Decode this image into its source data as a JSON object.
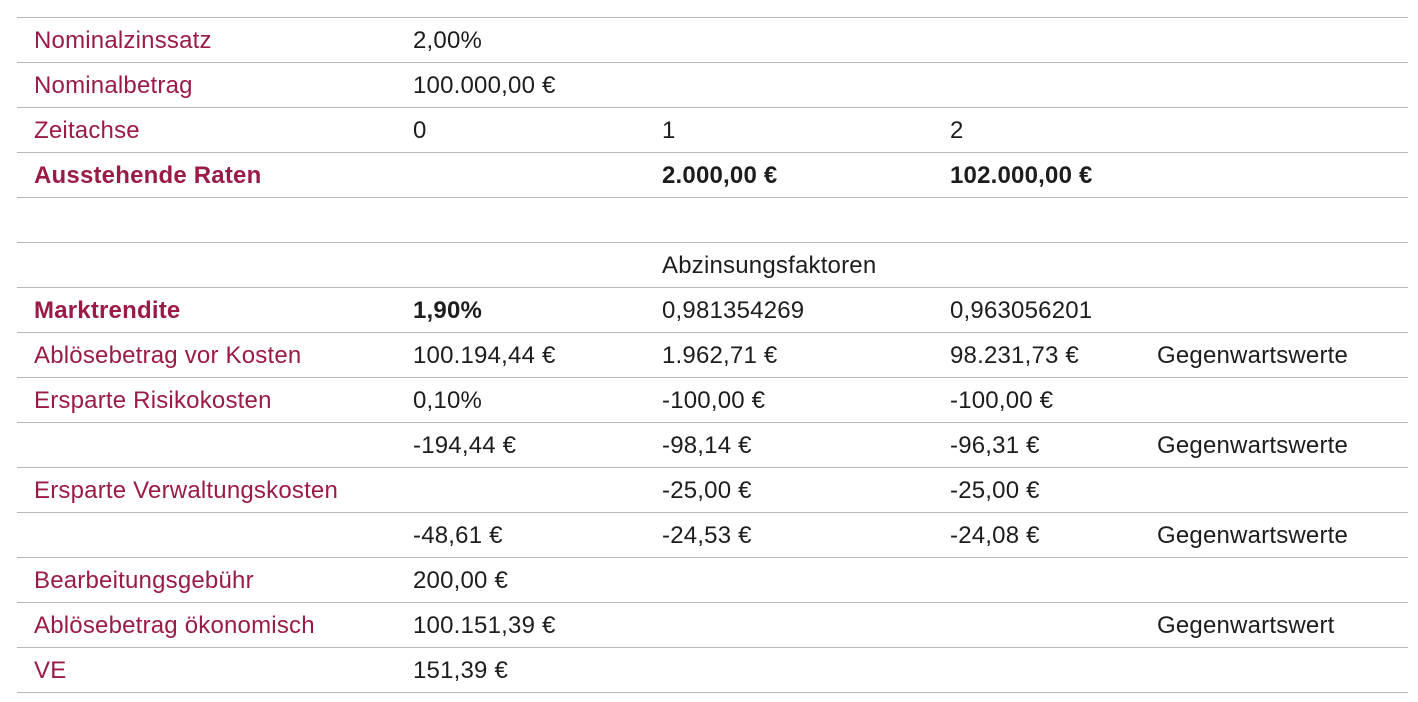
{
  "meta": {
    "description": "Financial redemption / present value calculation table (German)",
    "language": "de",
    "colors": {
      "label_maroon": "#9a1b46",
      "value_text": "#1d1d1d",
      "grid_line": "#b8b8b8",
      "background": "#ffffff"
    }
  },
  "table": {
    "column_keys": [
      "label",
      "c2",
      "c3",
      "c4",
      "c5"
    ],
    "rows": [
      {
        "cells": {
          "label": "Nominalzinssatz",
          "c2": "2,00%"
        }
      },
      {
        "cells": {
          "label": "Nominalbetrag",
          "c2": "100.000,00 €"
        }
      },
      {
        "cells": {
          "label": "Zeitachse",
          "c2": "0",
          "c3": "1",
          "c4": "2"
        }
      },
      {
        "cells": {
          "label": "Ausstehende Raten",
          "c3": "2.000,00 €",
          "c4": "102.000,00 €"
        },
        "bold_label": true,
        "bold_cells": [
          "c3",
          "c4"
        ]
      },
      {
        "cells": {}
      },
      {
        "cells": {
          "c3": "Abzinsungsfaktoren"
        }
      },
      {
        "cells": {
          "label": "Marktrendite",
          "c2": "1,90%",
          "c3": "0,981354269",
          "c4": "0,963056201"
        },
        "bold_label": true,
        "bold_cells": [
          "c2"
        ]
      },
      {
        "cells": {
          "label": "Ablösebetrag vor Kosten",
          "c2": "100.194,44 €",
          "c3": "1.962,71 €",
          "c4": "98.231,73 €",
          "c5": "Gegenwartswerte"
        }
      },
      {
        "cells": {
          "label": "Ersparte Risikokosten",
          "c2": "0,10%",
          "c3": "-100,00 €",
          "c4": "-100,00 €"
        }
      },
      {
        "cells": {
          "c2": "-194,44 €",
          "c3": "-98,14 €",
          "c4": "-96,31 €",
          "c5": "Gegenwartswerte"
        }
      },
      {
        "cells": {
          "label": "Ersparte Verwaltungskosten",
          "c3": "-25,00 €",
          "c4": "-25,00 €"
        }
      },
      {
        "cells": {
          "c2": "-48,61 €",
          "c3": "-24,53 €",
          "c4": "-24,08 €",
          "c5": "Gegenwartswerte"
        }
      },
      {
        "cells": {
          "label": "Bearbeitungsgebühr",
          "c2": "200,00 €"
        }
      },
      {
        "cells": {
          "label": "Ablösebetrag ökonomisch",
          "c2": "100.151,39 €",
          "c5": "Gegenwartswert"
        }
      },
      {
        "cells": {
          "label": "VE",
          "c2": "151,39 €"
        }
      }
    ]
  }
}
